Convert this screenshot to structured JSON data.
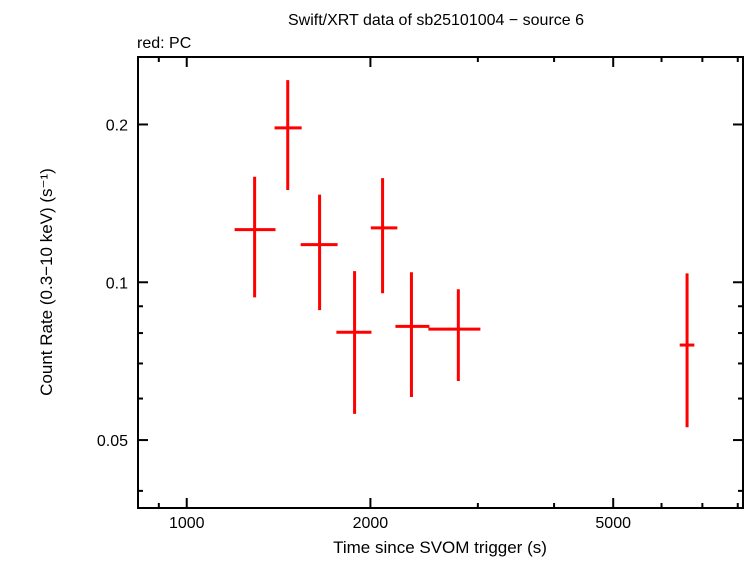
{
  "chart_data": {
    "type": "scatter",
    "title": "Swift/XRT data of sb25101004 − source 6",
    "legend_note": "red: PC",
    "xlabel": "Time since SVOM trigger (s)",
    "ylabel": "Count Rate (0.3−10 keV) (s⁻¹)",
    "xscale": "log",
    "yscale": "log",
    "xlim": [
      832,
      8160
    ],
    "ylim": [
      0.0371,
      0.269
    ],
    "x_ticks": [
      {
        "value": 1000,
        "label": "1000"
      },
      {
        "value": 2000,
        "label": "2000"
      },
      {
        "value": 5000,
        "label": "5000"
      }
    ],
    "x_minor_ticks": [
      900,
      3000,
      4000,
      6000,
      7000,
      8000
    ],
    "y_ticks": [
      {
        "value": 0.05,
        "label": "0.05"
      },
      {
        "value": 0.1,
        "label": "0.1"
      },
      {
        "value": 0.2,
        "label": "0.2"
      }
    ],
    "y_minor_ticks": [
      0.04,
      0.06,
      0.07,
      0.08,
      0.09
    ],
    "grid": false,
    "series": [
      {
        "name": "PC",
        "color": "#ff0000",
        "points": [
          {
            "x": 1292,
            "xlo": 1198,
            "xhi": 1398,
            "y": 0.126,
            "ylo": 0.0936,
            "yhi": 0.159
          },
          {
            "x": 1464,
            "xlo": 1393,
            "xhi": 1543,
            "y": 0.197,
            "ylo": 0.15,
            "yhi": 0.243
          },
          {
            "x": 1651,
            "xlo": 1537,
            "xhi": 1767,
            "y": 0.118,
            "ylo": 0.0885,
            "yhi": 0.147
          },
          {
            "x": 1884,
            "xlo": 1759,
            "xhi": 2008,
            "y": 0.0803,
            "ylo": 0.0561,
            "yhi": 0.105
          },
          {
            "x": 2094,
            "xlo": 2003,
            "xhi": 2214,
            "y": 0.127,
            "ylo": 0.0953,
            "yhi": 0.158
          },
          {
            "x": 2335,
            "xlo": 2198,
            "xhi": 2499,
            "y": 0.0824,
            "ylo": 0.0604,
            "yhi": 0.1045
          },
          {
            "x": 2787,
            "xlo": 2489,
            "xhi": 3029,
            "y": 0.0814,
            "ylo": 0.0648,
            "yhi": 0.097
          },
          {
            "x": 6607,
            "xlo": 6426,
            "xhi": 6792,
            "y": 0.0759,
            "ylo": 0.0529,
            "yhi": 0.104
          }
        ]
      }
    ]
  }
}
